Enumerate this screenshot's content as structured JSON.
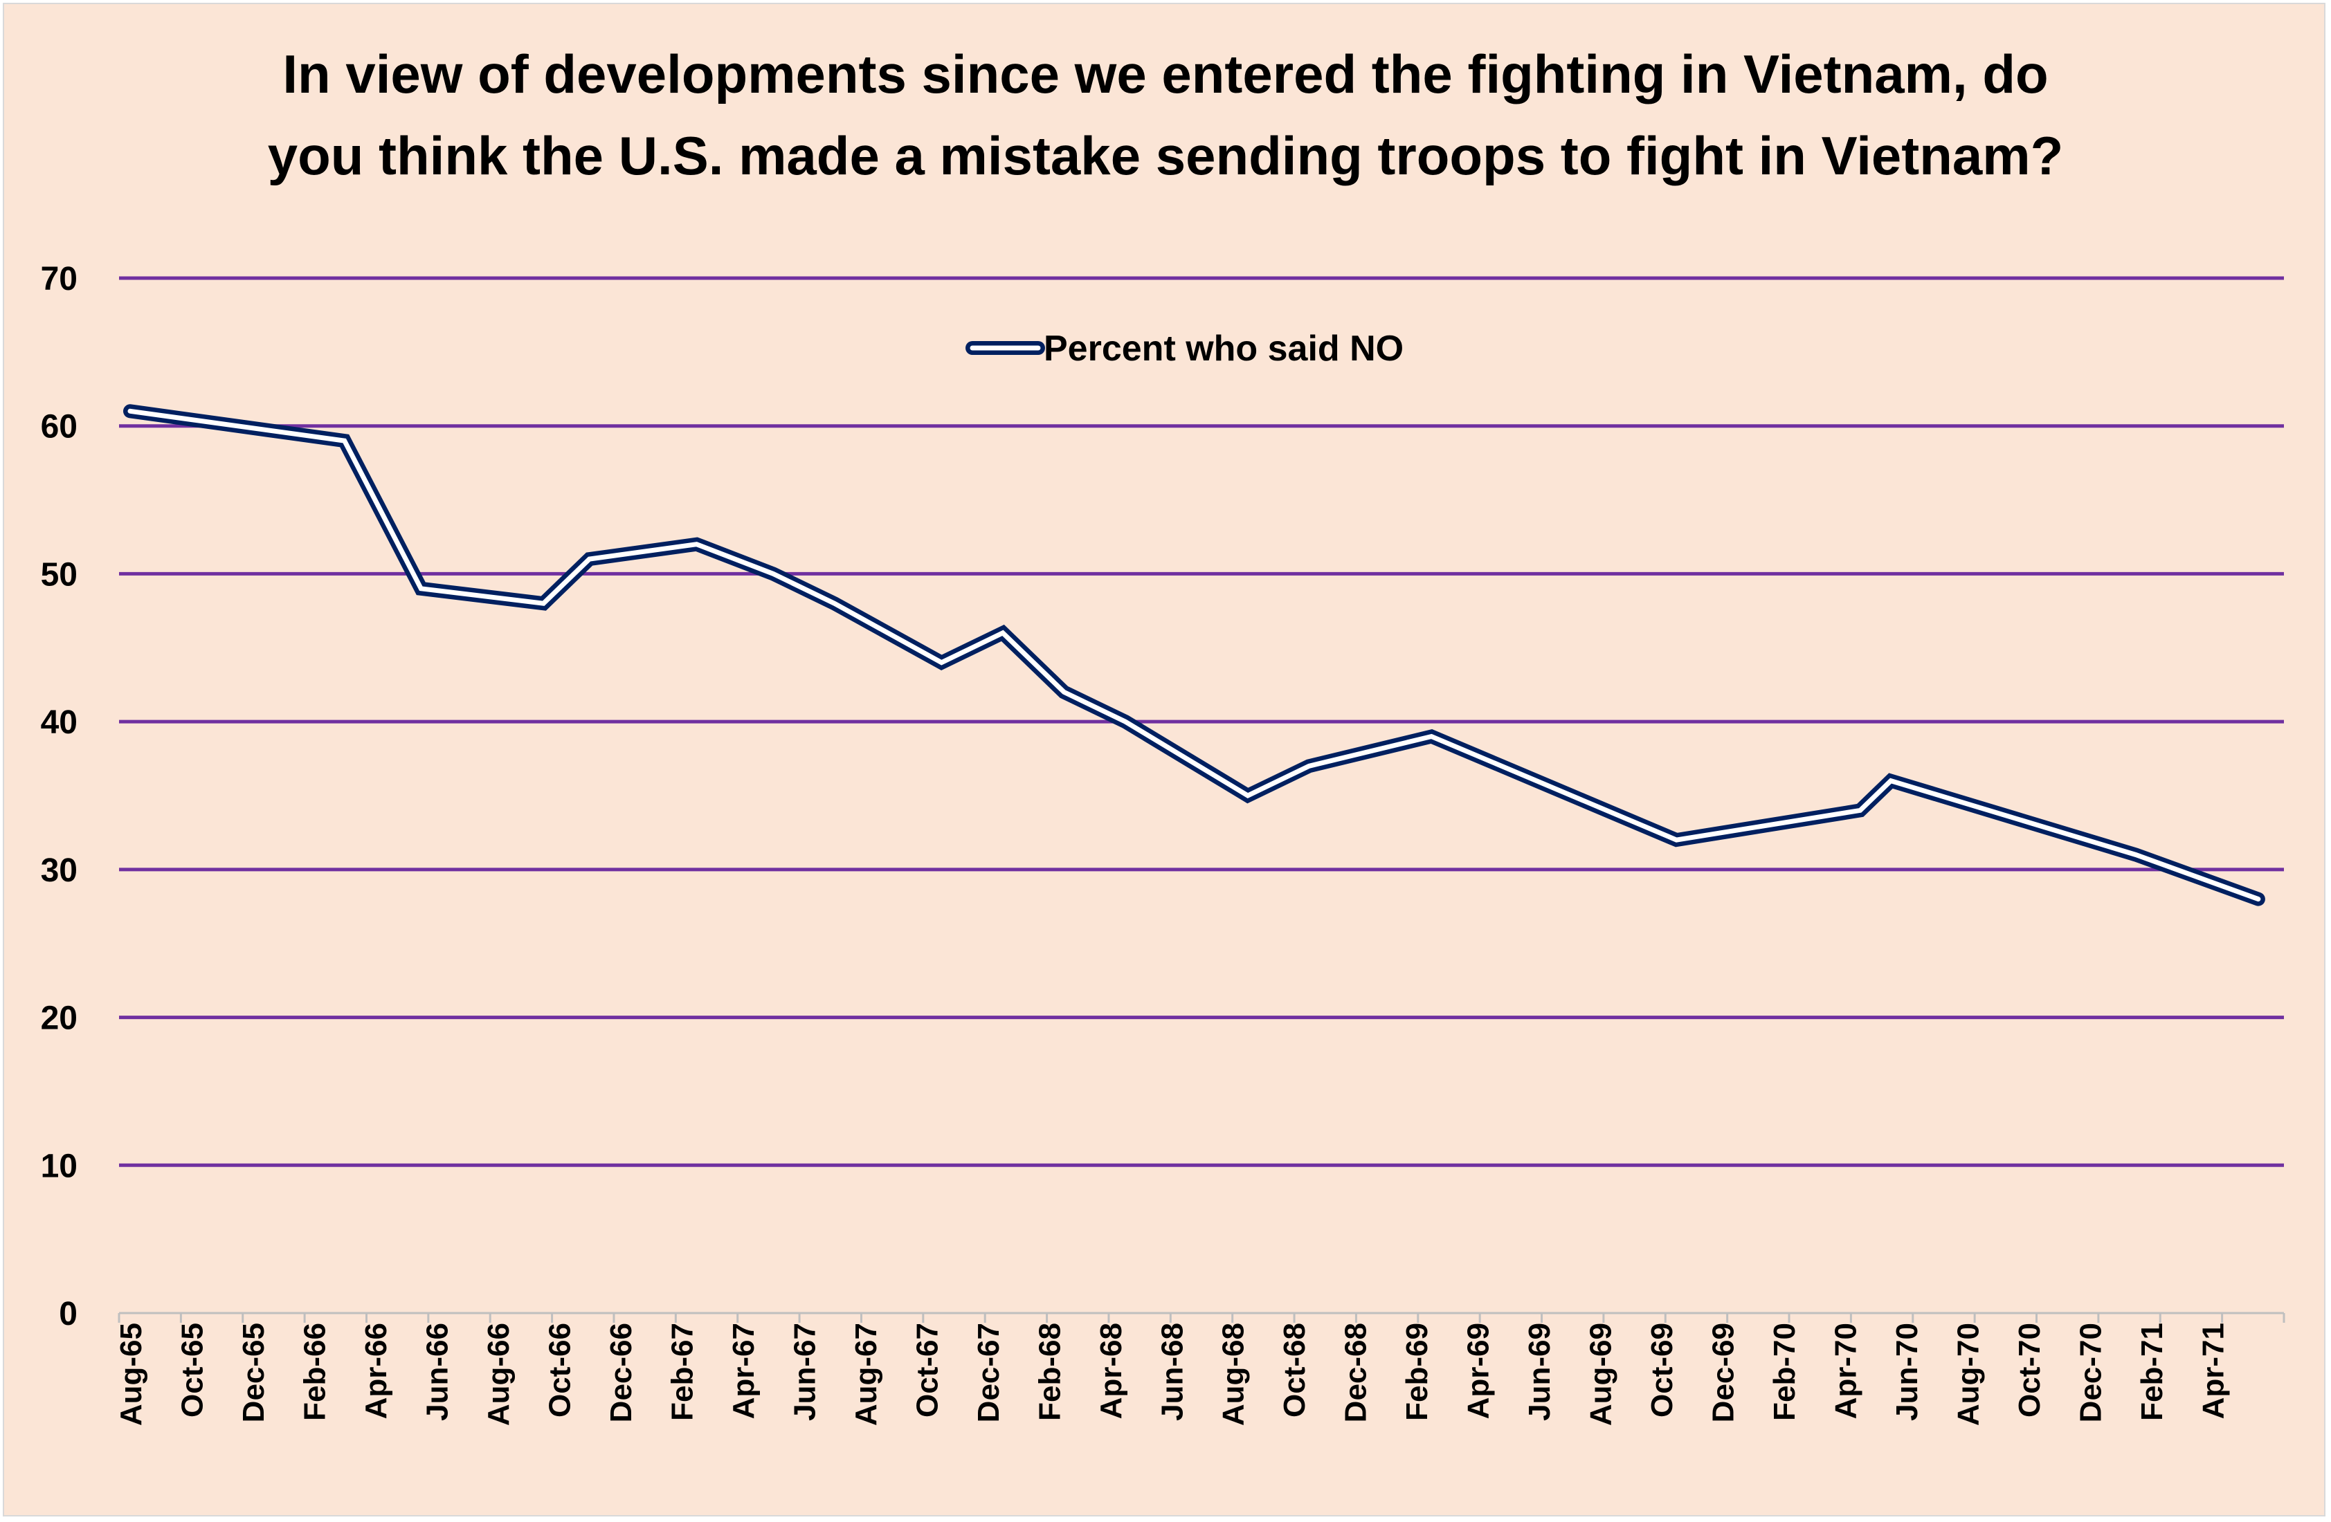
{
  "chart_data": {
    "type": "line",
    "title_lines": [
      "In view of developments since we entered the fighting in Vietnam, do",
      "you think the U.S. made a mistake sending troops to fight in Vietnam?"
    ],
    "xlabel": "",
    "ylabel": "",
    "ylim": [
      0,
      70
    ],
    "yticks": [
      0,
      10,
      20,
      30,
      40,
      50,
      60,
      70
    ],
    "grid": true,
    "legend_position": "top-center",
    "x_tick_labels": [
      "Aug-65",
      "Oct-65",
      "Dec-65",
      "Feb-66",
      "Apr-66",
      "Jun-66",
      "Aug-66",
      "Oct-66",
      "Dec-66",
      "Feb-67",
      "Apr-67",
      "Jun-67",
      "Aug-67",
      "Oct-67",
      "Dec-67",
      "Feb-68",
      "Apr-68",
      "Jun-68",
      "Aug-68",
      "Oct-68",
      "Dec-68",
      "Feb-69",
      "Apr-69",
      "Jun-69",
      "Aug-69",
      "Oct-69",
      "Dec-69",
      "Feb-70",
      "Apr-70",
      "Jun-70",
      "Aug-70",
      "Oct-70",
      "Dec-70",
      "Feb-71",
      "Apr-71"
    ],
    "x_range_months": [
      0,
      70
    ],
    "series": [
      {
        "name": "Percent who said NO",
        "color": "#002060",
        "points": [
          {
            "month": 0,
            "label": "Aug-65",
            "value": 61
          },
          {
            "month": 7,
            "label": "Mar-66",
            "value": 59
          },
          {
            "month": 9.5,
            "label": "May-66",
            "value": 49
          },
          {
            "month": 13.5,
            "label": "Sep-66",
            "value": 48
          },
          {
            "month": 15,
            "label": "Nov-66",
            "value": 51
          },
          {
            "month": 18.5,
            "label": "Feb-67",
            "value": 52
          },
          {
            "month": 21,
            "label": "Apr-67",
            "value": 50
          },
          {
            "month": 23,
            "label": "Jul-67",
            "value": 48
          },
          {
            "month": 26.5,
            "label": "Oct-67",
            "value": 44
          },
          {
            "month": 28.5,
            "label": "Dec-67",
            "value": 46
          },
          {
            "month": 30.5,
            "label": "Feb-68",
            "value": 42
          },
          {
            "month": 32.5,
            "label": "Apr-68",
            "value": 40
          },
          {
            "month": 36.5,
            "label": "Aug-68",
            "value": 35
          },
          {
            "month": 38.5,
            "label": "Oct-68",
            "value": 37
          },
          {
            "month": 42.5,
            "label": "Feb-69",
            "value": 39
          },
          {
            "month": 50.5,
            "label": "Oct-69",
            "value": 32
          },
          {
            "month": 56.5,
            "label": "Apr-70",
            "value": 34
          },
          {
            "month": 57.5,
            "label": "May-70",
            "value": 36
          },
          {
            "month": 65.5,
            "label": "Jan-71",
            "value": 31
          },
          {
            "month": 69.5,
            "label": "May-71",
            "value": 28
          }
        ]
      }
    ]
  }
}
